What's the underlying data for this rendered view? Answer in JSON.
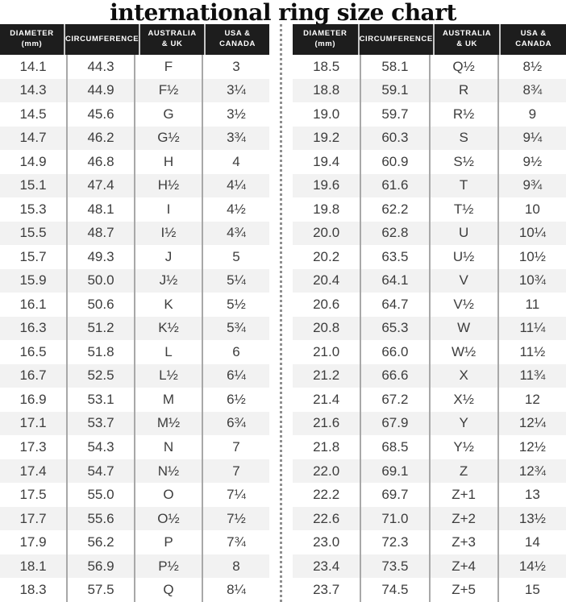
{
  "title": "international ring size chart",
  "colors": {
    "header_bg": "#1d1d1d",
    "header_text": "#ffffff",
    "row_alt": "#f2f2f2",
    "row_text": "#3d3d3d",
    "column_separator": "#a8a8a8",
    "header_separator": "#c6c6c6",
    "divider_dots": "#8f8f8f"
  },
  "chart_data": {
    "type": "table",
    "title": "international ring size chart",
    "columns": [
      {
        "key": "diameter-mm",
        "label_lines": [
          "DIAMETER",
          "(mm)"
        ]
      },
      {
        "key": "circumference",
        "label_lines": [
          "CIRCUMFERENCE"
        ]
      },
      {
        "key": "australia-uk",
        "label_lines": [
          "AUSTRALIA",
          "& UK"
        ]
      },
      {
        "key": "usa-canada",
        "label_lines": [
          "USA &",
          "CANADA"
        ]
      }
    ],
    "tables": [
      {
        "name": "left",
        "rows": [
          [
            "14.1",
            "44.3",
            "F",
            "3"
          ],
          [
            "14.3",
            "44.9",
            "F½",
            "3¼"
          ],
          [
            "14.5",
            "45.6",
            "G",
            "3½"
          ],
          [
            "14.7",
            "46.2",
            "G½",
            "3¾"
          ],
          [
            "14.9",
            "46.8",
            "H",
            "4"
          ],
          [
            "15.1",
            "47.4",
            "H½",
            "4¼"
          ],
          [
            "15.3",
            "48.1",
            "I",
            "4½"
          ],
          [
            "15.5",
            "48.7",
            "I½",
            "4¾"
          ],
          [
            "15.7",
            "49.3",
            "J",
            "5"
          ],
          [
            "15.9",
            "50.0",
            "J½",
            "5¼"
          ],
          [
            "16.1",
            "50.6",
            "K",
            "5½"
          ],
          [
            "16.3",
            "51.2",
            "K½",
            "5¾"
          ],
          [
            "16.5",
            "51.8",
            "L",
            "6"
          ],
          [
            "16.7",
            "52.5",
            "L½",
            "6¼"
          ],
          [
            "16.9",
            "53.1",
            "M",
            "6½"
          ],
          [
            "17.1",
            "53.7",
            "M½",
            "6¾"
          ],
          [
            "17.3",
            "54.3",
            "N",
            "7"
          ],
          [
            "17.4",
            "54.7",
            "N½",
            "7"
          ],
          [
            "17.5",
            "55.0",
            "O",
            "7¼"
          ],
          [
            "17.7",
            "55.6",
            "O½",
            "7½"
          ],
          [
            "17.9",
            "56.2",
            "P",
            "7¾"
          ],
          [
            "18.1",
            "56.9",
            "P½",
            "8"
          ],
          [
            "18.3",
            "57.5",
            "Q",
            "8¼"
          ]
        ]
      },
      {
        "name": "right",
        "rows": [
          [
            "18.5",
            "58.1",
            "Q½",
            "8½"
          ],
          [
            "18.8",
            "59.1",
            "R",
            "8¾"
          ],
          [
            "19.0",
            "59.7",
            "R½",
            "9"
          ],
          [
            "19.2",
            "60.3",
            "S",
            "9¼"
          ],
          [
            "19.4",
            "60.9",
            "S½",
            "9½"
          ],
          [
            "19.6",
            "61.6",
            "T",
            "9¾"
          ],
          [
            "19.8",
            "62.2",
            "T½",
            "10"
          ],
          [
            "20.0",
            "62.8",
            "U",
            "10¼"
          ],
          [
            "20.2",
            "63.5",
            "U½",
            "10½"
          ],
          [
            "20.4",
            "64.1",
            "V",
            "10¾"
          ],
          [
            "20.6",
            "64.7",
            "V½",
            "11"
          ],
          [
            "20.8",
            "65.3",
            "W",
            "11¼"
          ],
          [
            "21.0",
            "66.0",
            "W½",
            "11½"
          ],
          [
            "21.2",
            "66.6",
            "X",
            "11¾"
          ],
          [
            "21.4",
            "67.2",
            "X½",
            "12"
          ],
          [
            "21.6",
            "67.9",
            "Y",
            "12¼"
          ],
          [
            "21.8",
            "68.5",
            "Y½",
            "12½"
          ],
          [
            "22.0",
            "69.1",
            "Z",
            "12¾"
          ],
          [
            "22.2",
            "69.7",
            "Z+1",
            "13"
          ],
          [
            "22.6",
            "71.0",
            "Z+2",
            "13½"
          ],
          [
            "23.0",
            "72.3",
            "Z+3",
            "14"
          ],
          [
            "23.4",
            "73.5",
            "Z+4",
            "14½"
          ],
          [
            "23.7",
            "74.5",
            "Z+5",
            "15"
          ]
        ]
      }
    ]
  }
}
